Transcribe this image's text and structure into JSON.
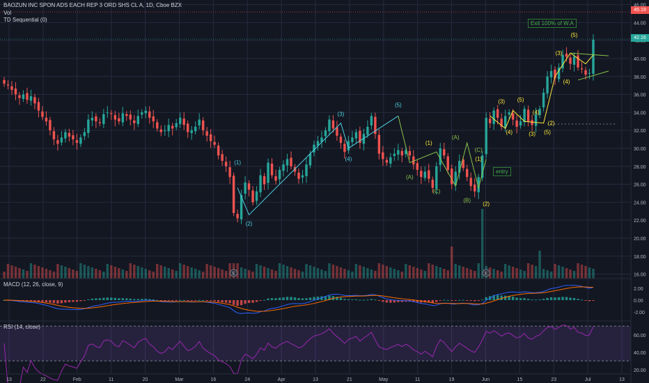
{
  "header": {
    "symbol_line": "BAOZUN INC SPON ADS EACH REP 3 ORD SHS CL A, 1D, Cboe BZX",
    "vol_label": "Vol",
    "td_label": "TD Sequential (0)"
  },
  "macd_label": "MACD (12, 26, close, 9)",
  "rsi_label": "RSI (14, close)",
  "annotations": {
    "exit": "Exit 100% of W.A",
    "entry": "entry"
  },
  "earnings_marker": "E",
  "price_tags": {
    "top": "45.19",
    "current": "42.16"
  },
  "colors": {
    "background": "#131722",
    "up": "#26a69a",
    "down": "#ef5350",
    "grid": "#262b3e",
    "wave_cyan": "#4dd0e1",
    "wave_yellow": "#ffeb3b",
    "wave_green": "#8bc34a",
    "macd_line": "#2962ff",
    "signal_line": "#ff6d00",
    "rsi_line": "#9c27b0"
  },
  "chart_data": [
    {
      "type": "candlestick",
      "panel": "price",
      "ylim": [
        15.5,
        46.2
      ],
      "y_ticks": [
        "16.00",
        "18.00",
        "20.00",
        "22.00",
        "24.00",
        "26.00",
        "28.00",
        "30.00",
        "32.00",
        "34.00",
        "36.00",
        "38.00",
        "40.00",
        "42.00",
        "44.00",
        "46.00"
      ],
      "x_ticks": [
        "13",
        "22",
        "Feb",
        "11",
        "20",
        "Mar",
        "16",
        "24",
        "Apr",
        "13",
        "21",
        "May",
        "11",
        "19",
        "Jun",
        "15",
        "23",
        "Jul",
        "13"
      ],
      "close": [
        37.2,
        37.0,
        36.5,
        36.0,
        35.6,
        36.0,
        35.4,
        35.8,
        35.0,
        34.2,
        33.5,
        33.0,
        32.0,
        31.0,
        30.5,
        31.2,
        31.8,
        31.3,
        31.0,
        30.6,
        31.2,
        31.8,
        33.2,
        33.4,
        33.0,
        32.8,
        33.8,
        34.0,
        33.8,
        33.2,
        33.0,
        33.9,
        33.6,
        33.2,
        32.8,
        33.6,
        34.0,
        34.2,
        33.4,
        33.0,
        32.2,
        31.8,
        32.0,
        32.6,
        32.2,
        32.8,
        33.4,
        32.6,
        31.8,
        32.0,
        32.4,
        33.2,
        32.0,
        31.4,
        30.8,
        30.4,
        29.2,
        28.6,
        28.0,
        26.8,
        22.8,
        22.2,
        24.8,
        26.2,
        25.4,
        24.0,
        25.2,
        27.0,
        26.0,
        28.4,
        27.0,
        26.4,
        27.6,
        28.2,
        28.8,
        28.0,
        27.4,
        26.6,
        27.0,
        28.2,
        29.4,
        30.4,
        30.8,
        31.2,
        32.0,
        33.2,
        32.2,
        31.4,
        30.6,
        29.6,
        30.8,
        31.2,
        31.8,
        30.6,
        31.6,
        32.4,
        33.6,
        31.6,
        29.4,
        28.8,
        28.4,
        29.0,
        29.4,
        29.8,
        29.2,
        29.8,
        29.2,
        28.2,
        27.6,
        26.8,
        27.4,
        26.6,
        25.6,
        28.0,
        30.0,
        29.2,
        27.6,
        26.0,
        27.4,
        28.6,
        27.8,
        26.8,
        25.8,
        25.2,
        26.8,
        29.2,
        33.4,
        32.8,
        34.2,
        33.4,
        32.4,
        33.6,
        34.0,
        33.2,
        32.4,
        33.0,
        34.4,
        33.0,
        32.6,
        33.8,
        34.4,
        36.2,
        38.0,
        38.6,
        37.8,
        39.0,
        40.4,
        40.2,
        39.4,
        40.2,
        39.0,
        38.8,
        38.2,
        38.4,
        42.1
      ],
      "volume_level": "shown as bars (no scale printed)",
      "labels": {
        "cyan_waves": [
          "(1)",
          "(2)",
          "(3)",
          "(4)",
          "(5)"
        ],
        "yellow_waves": [
          "(1)",
          "(2)",
          "(3)",
          "(4)",
          "(5)"
        ],
        "green_waves": [
          "(A)",
          "(B)",
          "(C)"
        ]
      }
    },
    {
      "type": "line",
      "panel": "macd",
      "ylim": [
        -3.5,
        3.5
      ],
      "y_ticks": [
        "2.00",
        "0.00",
        "-2.00"
      ]
    },
    {
      "type": "line",
      "panel": "rsi",
      "ylim": [
        15,
        75
      ],
      "y_ticks": [
        "60.00",
        "40.00",
        "20.00"
      ],
      "overbought": 70,
      "oversold": 30
    }
  ]
}
